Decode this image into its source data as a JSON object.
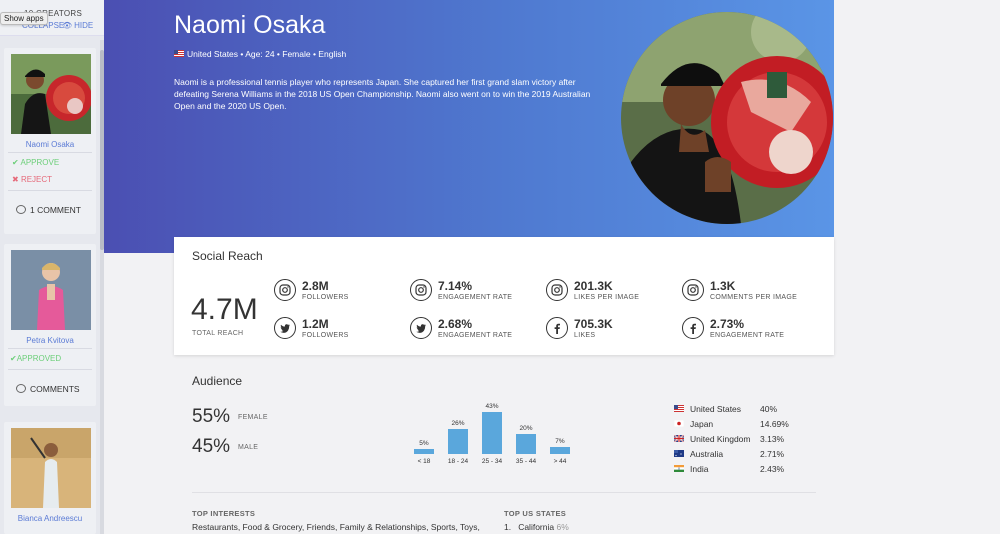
{
  "sidebar": {
    "count_label": "10 CREATORS",
    "collapse_label": "COLLAPSE",
    "hide_label": "HIDE",
    "tooltip": "Show apps",
    "cards": [
      {
        "name": "Naomi Osaka",
        "approve": "APPROVE",
        "reject": "REJECT",
        "comment": "1 COMMENT"
      },
      {
        "name": "Petra Kvitova",
        "approved": "APPROVED",
        "comment": "COMMENTS"
      },
      {
        "name": "Bianca Andreescu"
      }
    ]
  },
  "profile": {
    "name": "Naomi Osaka",
    "meta": "United States • Age: 24 • Female • English",
    "bio": "Naomi is a professional tennis player who represents Japan. She captured her first grand slam victory after defeating Serena Williams in the 2018 US Open Championship. Naomi also went on to win the 2019 Australian Open and the 2020 US Open."
  },
  "reach": {
    "title": "Social Reach",
    "total_value": "4.7M",
    "total_label": "TOTAL REACH",
    "stats": [
      {
        "icon": "instagram-icon",
        "value": "2.8M",
        "label": "FOLLOWERS"
      },
      {
        "icon": "instagram-icon",
        "value": "7.14%",
        "label": "ENGAGEMENT RATE"
      },
      {
        "icon": "instagram-icon",
        "value": "201.3K",
        "label": "LIKES PER IMAGE"
      },
      {
        "icon": "instagram-icon",
        "value": "1.3K",
        "label": "COMMENTS PER IMAGE"
      },
      {
        "icon": "twitter-icon",
        "value": "1.2M",
        "label": "FOLLOWERS"
      },
      {
        "icon": "twitter-icon",
        "value": "2.68%",
        "label": "ENGAGEMENT RATE"
      },
      {
        "icon": "facebook-icon",
        "value": "705.3K",
        "label": "LIKES"
      },
      {
        "icon": "facebook-icon",
        "value": "2.73%",
        "label": "ENGAGEMENT RATE"
      }
    ]
  },
  "audience": {
    "title": "Audience",
    "female_pct": "55%",
    "female_label": "FEMALE",
    "male_pct": "45%",
    "male_label": "MALE",
    "age_chart": {
      "categories": [
        "< 18",
        "18 - 24",
        "25 - 34",
        "35 - 44",
        "> 44"
      ],
      "values": [
        5,
        26,
        43,
        20,
        7
      ],
      "labels": [
        "5%",
        "26%",
        "43%",
        "20%",
        "7%"
      ]
    },
    "countries": [
      {
        "flag": "us-flag-icon",
        "name": "United States",
        "pct": "40%"
      },
      {
        "flag": "japan-flag-icon",
        "name": "Japan",
        "pct": "14.69%"
      },
      {
        "flag": "uk-flag-icon",
        "name": "United Kingdom",
        "pct": "3.13%"
      },
      {
        "flag": "australia-flag-icon",
        "name": "Australia",
        "pct": "2.71%"
      },
      {
        "flag": "india-flag-icon",
        "name": "India",
        "pct": "2.43%"
      }
    ],
    "top_interests_title": "TOP INTERESTS",
    "top_interests": "Restaurants, Food & Grocery, Friends, Family & Relationships, Sports, Toys,",
    "top_states_title": "TOP US STATES",
    "top_states": [
      {
        "rank": "1.",
        "name": "California",
        "pct": "6%"
      }
    ]
  },
  "colors": {
    "hero_start": "#4b4fb2",
    "hero_end": "#5a95e6",
    "bar": "#5aa7dc",
    "link": "#5b7bd5",
    "approve": "#6dcf7a",
    "reject": "#e66a7a"
  }
}
